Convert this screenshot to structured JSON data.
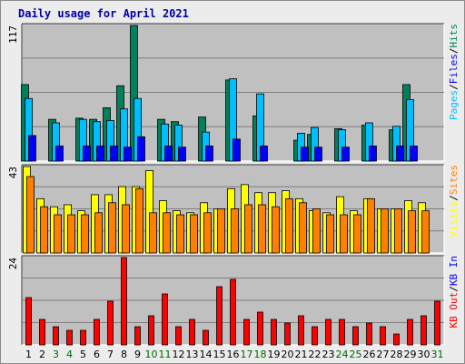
{
  "chart_data": [
    {
      "type": "bar",
      "title": "Daily usage for April 2021",
      "categories": [
        "1",
        "2",
        "3",
        "4",
        "5",
        "6",
        "7",
        "8",
        "9",
        "10",
        "11",
        "12",
        "13",
        "14",
        "15",
        "16",
        "17",
        "18",
        "19",
        "20",
        "21",
        "22",
        "23",
        "24",
        "25",
        "26",
        "27",
        "28",
        "29",
        "30",
        "31"
      ],
      "weekend_color": "#006400",
      "weekday_color": "#000000",
      "weekend_days": [
        "3",
        "4",
        "10",
        "11",
        "17",
        "18",
        "24",
        "25",
        "31"
      ],
      "ymax_label": "117",
      "ylim": [
        0,
        117
      ],
      "axis_label_parts": [
        "Pages",
        "/",
        "Files",
        "/",
        "Hits"
      ],
      "grid": true,
      "series": [
        {
          "name": "Hits",
          "color": "#00805c",
          "values": [
            66,
            0,
            36,
            0,
            37,
            36,
            46,
            65,
            117,
            0,
            36,
            34,
            0,
            38,
            0,
            70,
            0,
            39,
            0,
            0,
            18,
            23,
            0,
            28,
            0,
            31,
            0,
            27,
            66,
            0,
            0
          ]
        },
        {
          "name": "Files",
          "color": "#00bfff",
          "values": [
            54,
            0,
            33,
            0,
            36,
            34,
            35,
            45,
            54,
            0,
            32,
            31,
            0,
            25,
            0,
            71,
            0,
            58,
            0,
            0,
            24,
            29,
            0,
            27,
            0,
            33,
            0,
            30,
            53,
            0,
            0
          ]
        },
        {
          "name": "Pages",
          "color": "#0000ff",
          "values": [
            22,
            0,
            13,
            0,
            13,
            13,
            13,
            12,
            21,
            0,
            13,
            12,
            0,
            13,
            0,
            19,
            0,
            13,
            0,
            0,
            12,
            12,
            0,
            12,
            0,
            13,
            0,
            13,
            13,
            0,
            0
          ]
        }
      ]
    },
    {
      "type": "bar",
      "ymax_label": "43",
      "ylim": [
        0,
        43
      ],
      "axis_label_parts": [
        "Visits",
        "/",
        "Sites"
      ],
      "grid": true,
      "series": [
        {
          "name": "Visits",
          "color": "#ffff00",
          "values": [
            43,
            27,
            23,
            24,
            21,
            29,
            29,
            33,
            33,
            41,
            26,
            21,
            20,
            25,
            22,
            32,
            34,
            30,
            30,
            31,
            27,
            21,
            20,
            28,
            21,
            27,
            22,
            22,
            26,
            25,
            0
          ]
        },
        {
          "name": "Sites",
          "color": "#ff8000",
          "values": [
            38,
            23,
            19,
            19,
            19,
            20,
            25,
            24,
            32,
            20,
            20,
            19,
            19,
            20,
            22,
            22,
            24,
            24,
            23,
            27,
            25,
            22,
            19,
            19,
            19,
            27,
            22,
            22,
            21,
            21,
            0
          ]
        }
      ]
    },
    {
      "type": "bar",
      "ymax_label": "24",
      "ylim": [
        0,
        24
      ],
      "axis_label_parts": [
        "KB Out",
        "/",
        "KB In"
      ],
      "grid": true,
      "series": [
        {
          "name": "KB In",
          "color": "#0000ff",
          "values": [
            0,
            0,
            0,
            0,
            0,
            0,
            0,
            0,
            0,
            0,
            0,
            0,
            0,
            0,
            0,
            0,
            0,
            0,
            0,
            0,
            0,
            0,
            0,
            0,
            0,
            0,
            0,
            0,
            0,
            0,
            0
          ]
        },
        {
          "name": "KB Out",
          "color": "#ff0000",
          "values": [
            13,
            7,
            5,
            4,
            4,
            7,
            12,
            24,
            5,
            8,
            14,
            5,
            7,
            4,
            16,
            18,
            7,
            9,
            7,
            6,
            8,
            5,
            7,
            7,
            5,
            6,
            5,
            3,
            7,
            8,
            12
          ]
        }
      ]
    }
  ],
  "colors": {
    "panel_bg": "#c0c0c0",
    "title": "#0000aa",
    "grid": "#7f7f7f"
  }
}
